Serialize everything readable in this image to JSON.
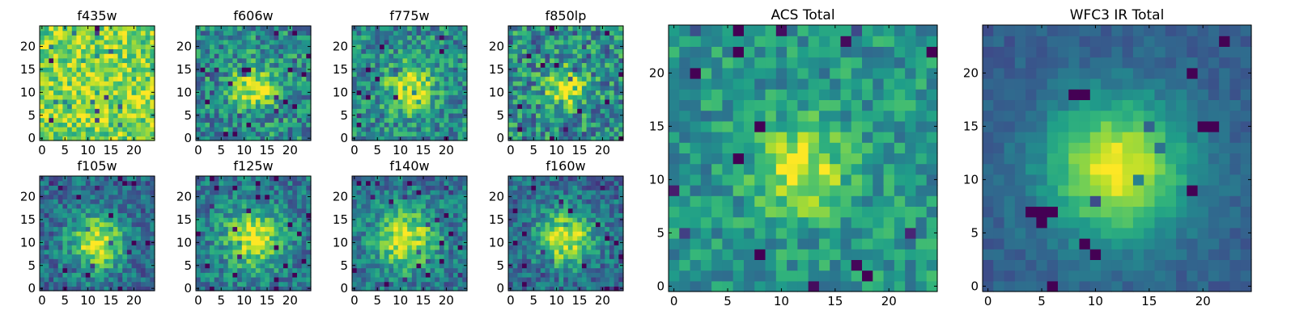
{
  "colormap": [
    "#440154",
    "#482878",
    "#3e4989",
    "#31688e",
    "#26828e",
    "#1f9e89",
    "#35b779",
    "#6ece58",
    "#b5de2b",
    "#fde725"
  ],
  "chart_data": [
    {
      "id": "f435w",
      "type": "heatmap",
      "title": "f435w",
      "grid_size": 25,
      "xlim": [
        0,
        24
      ],
      "ylim": [
        0,
        24
      ],
      "xticks": [
        "0",
        "5",
        "10",
        "15",
        "20"
      ],
      "yticks": [
        "0",
        "5",
        "10",
        "15",
        "20"
      ],
      "center": [
        12,
        11
      ],
      "sigma": 4.0,
      "peak": 0.05,
      "base": 0.8,
      "noise": 0.22,
      "seed": 11
    },
    {
      "id": "f606w",
      "type": "heatmap",
      "title": "f606w",
      "grid_size": 25,
      "xlim": [
        0,
        24
      ],
      "ylim": [
        0,
        24
      ],
      "xticks": [
        "0",
        "5",
        "10",
        "15",
        "20"
      ],
      "yticks": [
        "0",
        "5",
        "10",
        "15",
        "20"
      ],
      "center": [
        12,
        11
      ],
      "sigma": 3.2,
      "peak": 0.5,
      "base": 0.48,
      "noise": 0.26,
      "seed": 23
    },
    {
      "id": "f775w",
      "type": "heatmap",
      "title": "f775w",
      "grid_size": 25,
      "xlim": [
        0,
        24
      ],
      "ylim": [
        0,
        24
      ],
      "xticks": [
        "0",
        "5",
        "10",
        "15",
        "20"
      ],
      "yticks": [
        "0",
        "5",
        "10",
        "15",
        "20"
      ],
      "center": [
        12,
        11
      ],
      "sigma": 3.4,
      "peak": 0.52,
      "base": 0.48,
      "noise": 0.24,
      "seed": 37
    },
    {
      "id": "f850lp",
      "type": "heatmap",
      "title": "f850lp",
      "grid_size": 25,
      "xlim": [
        0,
        24
      ],
      "ylim": [
        0,
        24
      ],
      "xticks": [
        "0",
        "5",
        "10",
        "15",
        "20"
      ],
      "yticks": [
        "0",
        "5",
        "10",
        "15",
        "20"
      ],
      "center": [
        12,
        11
      ],
      "sigma": 3.0,
      "peak": 0.48,
      "base": 0.48,
      "noise": 0.28,
      "seed": 41
    },
    {
      "id": "f105w",
      "type": "heatmap",
      "title": "f105w",
      "grid_size": 25,
      "xlim": [
        0,
        24
      ],
      "ylim": [
        0,
        24
      ],
      "xticks": [
        "0",
        "5",
        "10",
        "15",
        "20"
      ],
      "yticks": [
        "0",
        "5",
        "10",
        "15",
        "20"
      ],
      "center": [
        12,
        10
      ],
      "sigma": 4.2,
      "peak": 0.6,
      "base": 0.35,
      "noise": 0.2,
      "seed": 53
    },
    {
      "id": "f125w",
      "type": "heatmap",
      "title": "f125w",
      "grid_size": 25,
      "xlim": [
        0,
        24
      ],
      "ylim": [
        0,
        24
      ],
      "xticks": [
        "0",
        "5",
        "10",
        "15",
        "20"
      ],
      "yticks": [
        "0",
        "5",
        "10",
        "15",
        "20"
      ],
      "center": [
        12,
        11
      ],
      "sigma": 4.5,
      "peak": 0.55,
      "base": 0.4,
      "noise": 0.2,
      "seed": 67
    },
    {
      "id": "f140w",
      "type": "heatmap",
      "title": "f140w",
      "grid_size": 25,
      "xlim": [
        0,
        24
      ],
      "ylim": [
        0,
        24
      ],
      "xticks": [
        "0",
        "5",
        "10",
        "15",
        "20"
      ],
      "yticks": [
        "0",
        "5",
        "10",
        "15",
        "20"
      ],
      "center": [
        11,
        11
      ],
      "sigma": 4.8,
      "peak": 0.55,
      "base": 0.38,
      "noise": 0.2,
      "seed": 71
    },
    {
      "id": "f160w",
      "type": "heatmap",
      "title": "f160w",
      "grid_size": 25,
      "xlim": [
        0,
        24
      ],
      "ylim": [
        0,
        24
      ],
      "xticks": [
        "0",
        "5",
        "10",
        "15",
        "20"
      ],
      "yticks": [
        "0",
        "5",
        "10",
        "15",
        "20"
      ],
      "center": [
        12,
        11
      ],
      "sigma": 4.2,
      "peak": 0.6,
      "base": 0.35,
      "noise": 0.2,
      "seed": 83
    },
    {
      "id": "acs-total",
      "type": "heatmap",
      "title": "ACS Total",
      "grid_size": 25,
      "xlim": [
        0,
        24
      ],
      "ylim": [
        0,
        24
      ],
      "xticks": [
        "0",
        "5",
        "10",
        "15",
        "20"
      ],
      "yticks": [
        "0",
        "5",
        "10",
        "15",
        "20"
      ],
      "center": [
        12,
        11
      ],
      "sigma": 3.0,
      "peak": 0.42,
      "base": 0.52,
      "noise": 0.18,
      "seed": 97
    },
    {
      "id": "wfc3-ir-total",
      "type": "heatmap",
      "title": "WFC3 IR Total",
      "grid_size": 25,
      "xlim": [
        0,
        24
      ],
      "ylim": [
        0,
        24
      ],
      "xticks": [
        "0",
        "5",
        "10",
        "15",
        "20"
      ],
      "yticks": [
        "0",
        "5",
        "10",
        "15",
        "20"
      ],
      "center": [
        12,
        11
      ],
      "sigma": 4.6,
      "peak": 0.68,
      "base": 0.3,
      "noise": 0.07,
      "seed": 101
    }
  ]
}
